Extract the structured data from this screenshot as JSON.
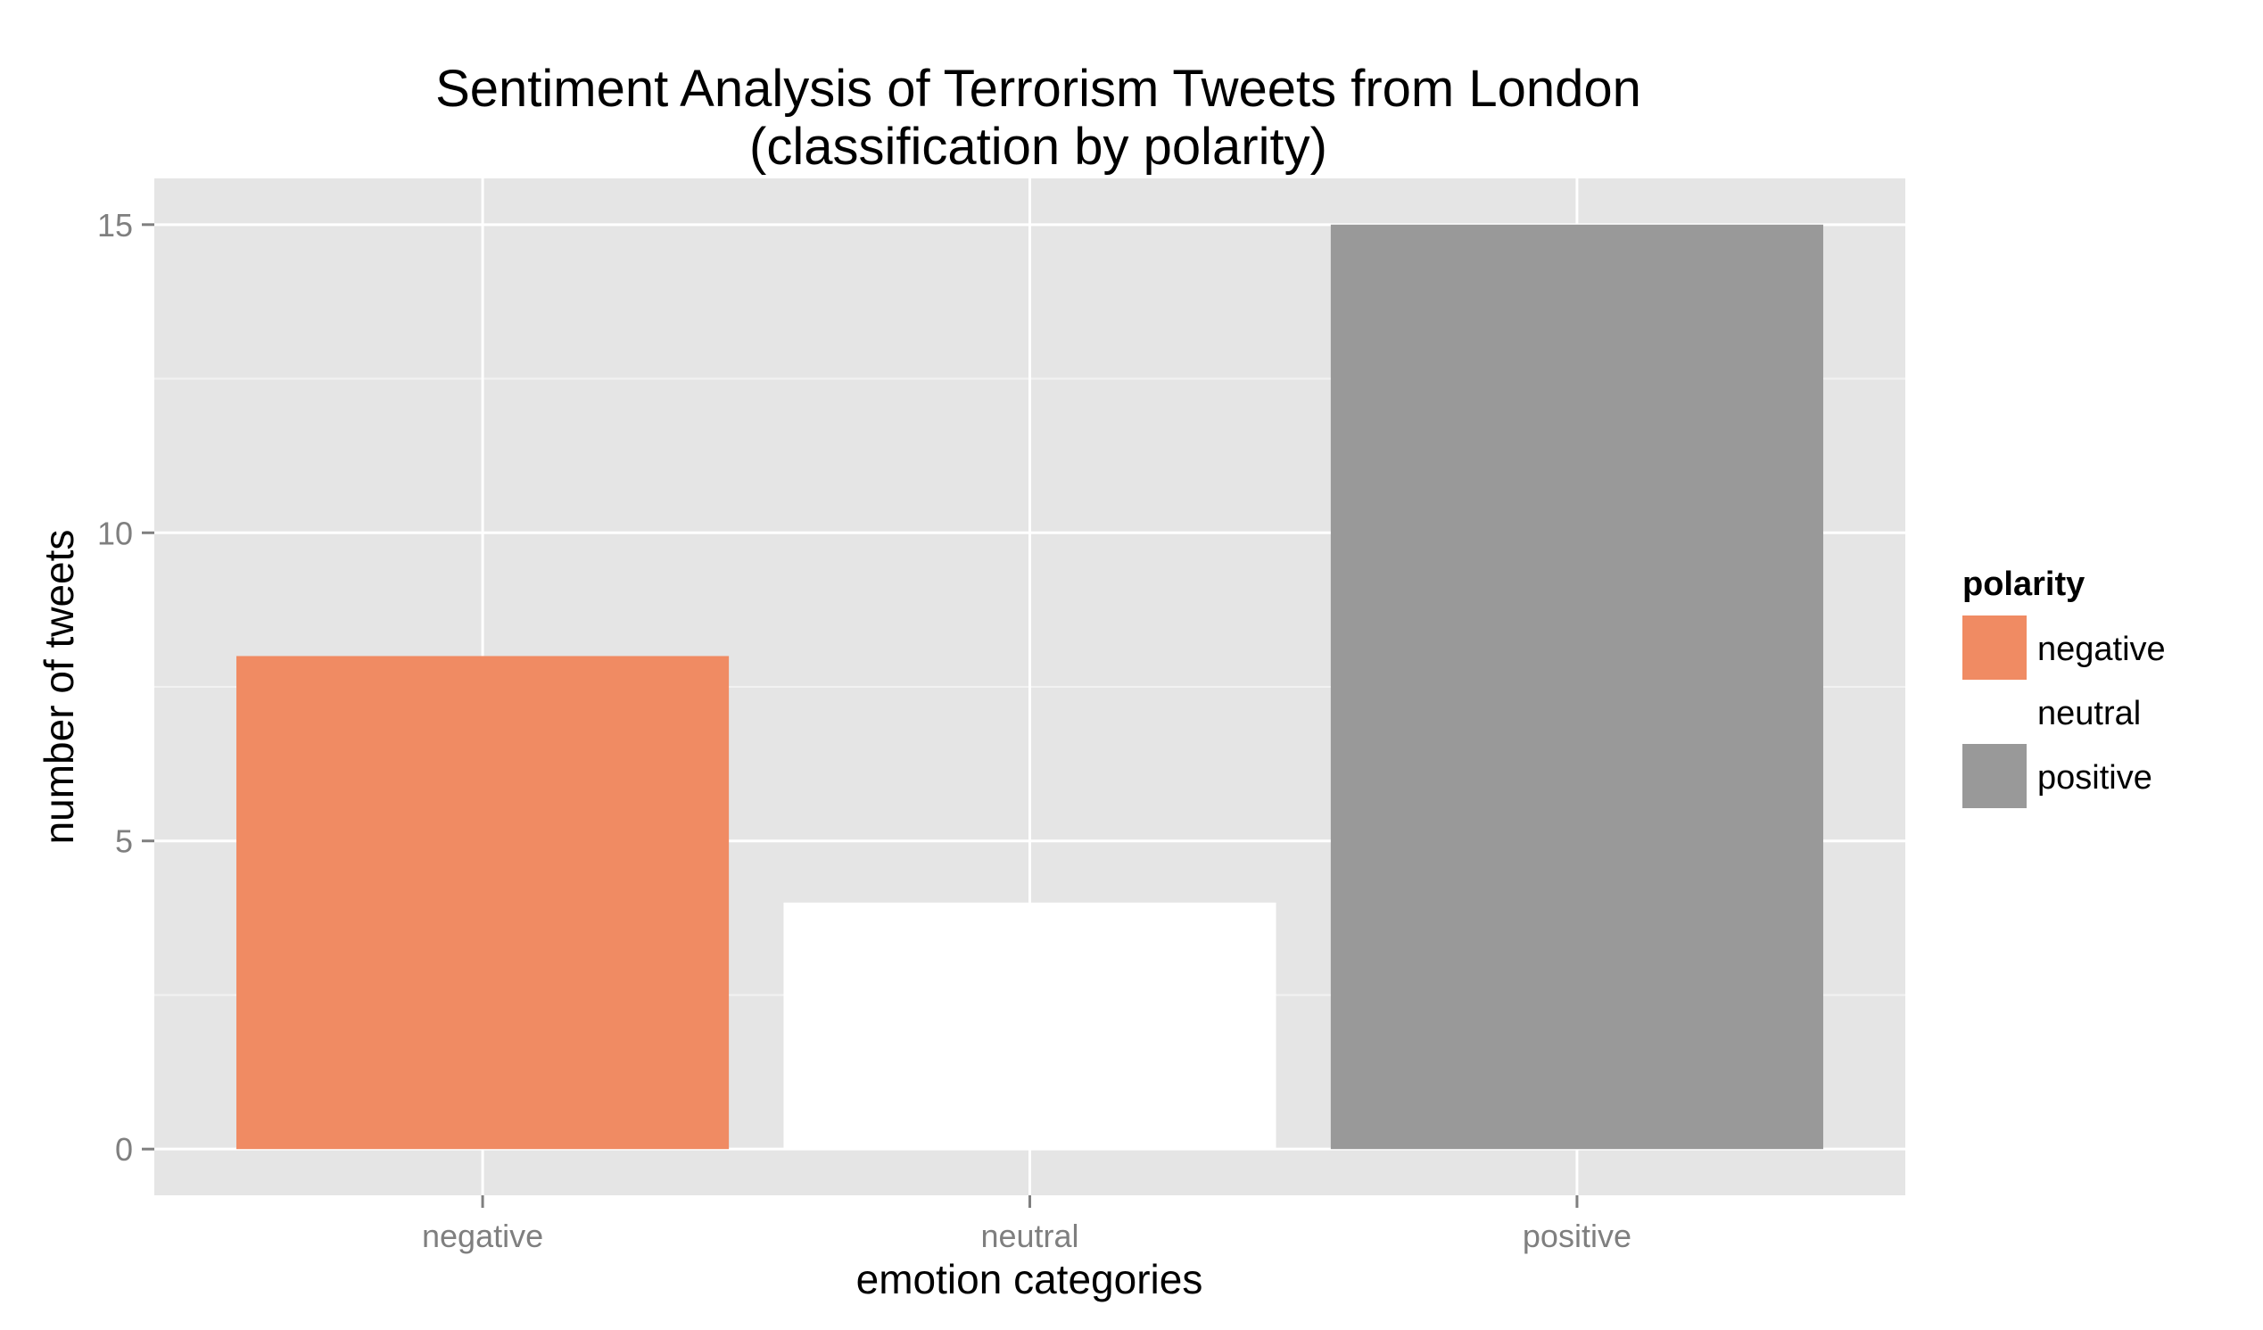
{
  "chart_data": {
    "type": "bar",
    "title": "Sentiment Analysis of Terrorism Tweets from London",
    "subtitle": "(classification by polarity)",
    "xlabel": "emotion categories",
    "ylabel": "number of tweets",
    "categories": [
      "negative",
      "neutral",
      "positive"
    ],
    "values": [
      8,
      4,
      15
    ],
    "colors": [
      "#f08b63",
      "#ffffff",
      "#999999"
    ],
    "ylim": [
      -0.75,
      15.75
    ],
    "yticks": [
      0,
      5,
      10,
      15
    ],
    "yticks_labels": [
      "0",
      "5",
      "10",
      "15"
    ],
    "grid": true,
    "panel_background": "#e5e5e5",
    "legend": {
      "title": "polarity",
      "placement": "right",
      "entries": [
        "negative",
        "neutral",
        "positive"
      ]
    }
  }
}
